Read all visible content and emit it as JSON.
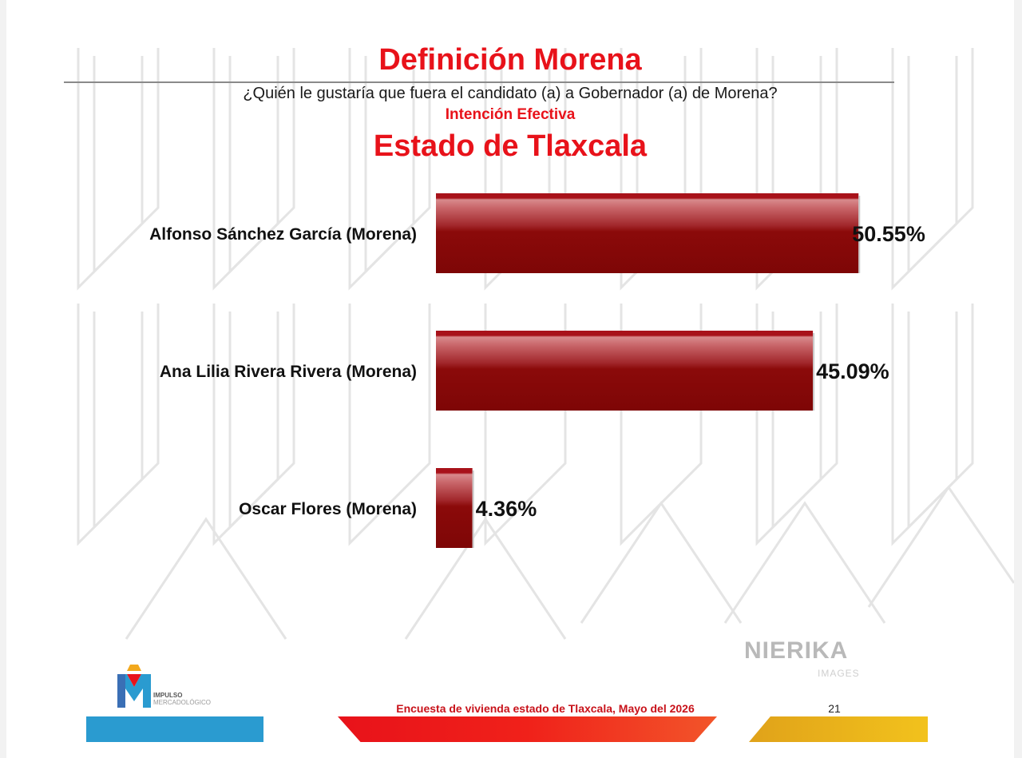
{
  "header": {
    "title": "Definición Morena",
    "question": "¿Quién le gustaría que fuera el candidato (a) a Gobernador (a) de Morena?",
    "subtitle": "Intención Efectiva",
    "region": "Estado de Tlaxcala"
  },
  "chart_data": {
    "type": "bar",
    "orientation": "horizontal",
    "categories": [
      "Alfonso Sánchez García (Morena)",
      "Ana Lilia Rivera Rivera (Morena)",
      "Oscar Flores (Morena)"
    ],
    "values": [
      50.55,
      45.09,
      4.36
    ],
    "value_labels": [
      "50.55%",
      "45.09%",
      "4.36%"
    ],
    "xlim": [
      0,
      100
    ],
    "grid": false,
    "legend": "none",
    "bar_color": "#8b0a0a",
    "highlight_color": "#c9666a"
  },
  "footer": {
    "survey": "Encuesta de vivienda estado de Tlaxcala, Mayo  del 2026",
    "page_number": "21"
  },
  "logo": {
    "line1": "IMPULSO",
    "line2": "MERCADOLÓGICO"
  },
  "watermark": {
    "brand": "NIERIKA",
    "sub": "IMAGES"
  }
}
